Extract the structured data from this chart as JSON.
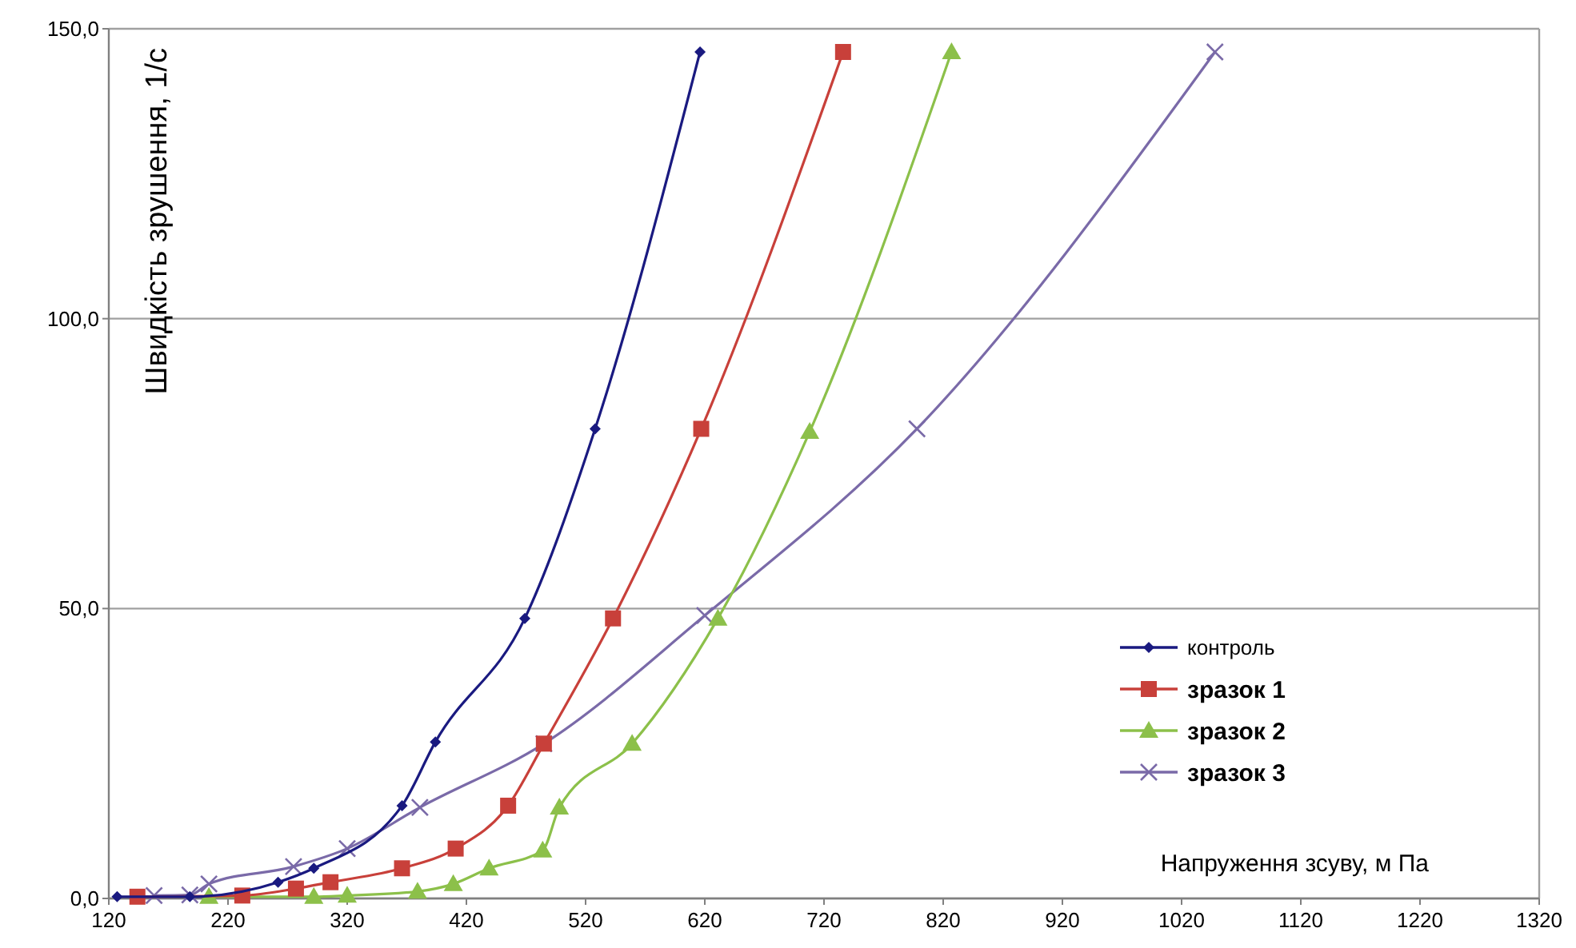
{
  "chart_data": {
    "type": "line",
    "ylabel": "Швидкість зрушення, 1/с",
    "xlabel": "Напруження зсуву, м Па",
    "xlim": [
      120,
      1320
    ],
    "xticks": [
      120,
      220,
      320,
      420,
      520,
      620,
      720,
      820,
      920,
      1020,
      1120,
      1220,
      1320
    ],
    "ylim": [
      0,
      150
    ],
    "yticks": [
      {
        "value": 0,
        "label": "0,0"
      },
      {
        "value": 50,
        "label": "50,0"
      },
      {
        "value": 100,
        "label": "100,0"
      },
      {
        "value": 150,
        "label": "150,0"
      }
    ],
    "grid": "y",
    "legend": "right",
    "line_style": "solid",
    "series": [
      {
        "name": "контроль",
        "color": "#1a1a80",
        "marker": "diamond",
        "x": [
          127,
          188,
          262,
          292,
          366,
          394,
          469,
          528,
          616
        ],
        "values": [
          0.3,
          0.3,
          2.8,
          5.2,
          16,
          27,
          48.3,
          81,
          146
        ]
      },
      {
        "name": "зразок 1",
        "color": "#c8403a",
        "marker": "square",
        "x": [
          144,
          232,
          277,
          306,
          366,
          411,
          455,
          485,
          543,
          617,
          736
        ],
        "values": [
          0.3,
          0.5,
          1.7,
          2.8,
          5.2,
          8.6,
          16,
          26.7,
          48.3,
          81,
          146
        ]
      },
      {
        "name": "зразок 2",
        "color": "#8cc04a",
        "marker": "triangle",
        "x": [
          204,
          292,
          320,
          379,
          409,
          439,
          484,
          498,
          559,
          631,
          708,
          827
        ],
        "values": [
          0.3,
          0.3,
          0.5,
          1.2,
          2.5,
          5.2,
          8.3,
          15.7,
          26.7,
          48.3,
          80.5,
          146
        ]
      },
      {
        "name": "зразок 3",
        "color": "#7a6aa8",
        "marker": "cross",
        "x": [
          158,
          188,
          204,
          275,
          320,
          381,
          485,
          620,
          798,
          1048
        ],
        "values": [
          0.5,
          0.6,
          2.5,
          5.5,
          8.6,
          15.7,
          26.7,
          48.8,
          81,
          146
        ]
      }
    ]
  }
}
